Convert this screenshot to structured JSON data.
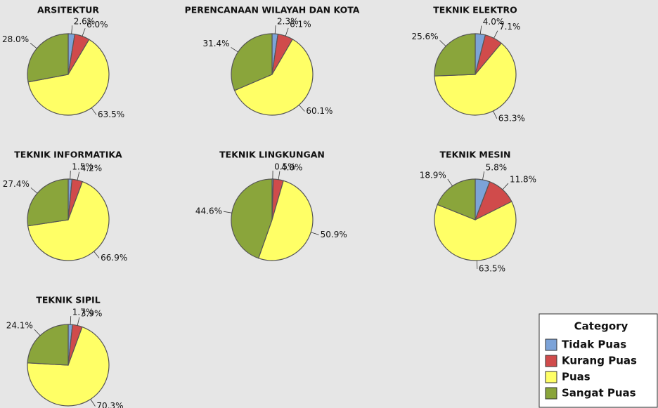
{
  "legend_title": "Category",
  "chart_data": [
    {
      "type": "pie",
      "title": "ARSITEKTUR",
      "categories": [
        "Tidak Puas",
        "Kurang Puas",
        "Puas",
        "Sangat Puas"
      ],
      "values": [
        2.6,
        6.0,
        63.5,
        28.0
      ],
      "value_labels": [
        "2.6%",
        "6.0%",
        "63.5%",
        "28.0%"
      ],
      "colors": [
        "#7ca3d8",
        "#d04b4b",
        "#ffff66",
        "#8aa53b"
      ]
    },
    {
      "type": "pie",
      "title": "PERENCANAAN WILAYAH DAN KOTA",
      "categories": [
        "Tidak Puas",
        "Kurang Puas",
        "Puas",
        "Sangat Puas"
      ],
      "values": [
        2.3,
        6.1,
        60.1,
        31.4
      ],
      "value_labels": [
        "2.3%",
        "6.1%",
        "60.1%",
        "31.4%"
      ],
      "colors": [
        "#7ca3d8",
        "#d04b4b",
        "#ffff66",
        "#8aa53b"
      ]
    },
    {
      "type": "pie",
      "title": "TEKNIK ELEKTRO",
      "categories": [
        "Tidak Puas",
        "Kurang Puas",
        "Puas",
        "Sangat Puas"
      ],
      "values": [
        4.0,
        7.1,
        63.3,
        25.6
      ],
      "value_labels": [
        "4.0%",
        "7.1%",
        "63.3%",
        "25.6%"
      ],
      "colors": [
        "#7ca3d8",
        "#d04b4b",
        "#ffff66",
        "#8aa53b"
      ]
    },
    {
      "type": "pie",
      "title": "TEKNIK INFORMATIKA",
      "categories": [
        "Tidak Puas",
        "Kurang Puas",
        "Puas",
        "Sangat Puas"
      ],
      "values": [
        1.5,
        4.2,
        66.9,
        27.4
      ],
      "value_labels": [
        "1.5%",
        "4.2%",
        "66.9%",
        "27.4%"
      ],
      "colors": [
        "#7ca3d8",
        "#d04b4b",
        "#ffff66",
        "#8aa53b"
      ]
    },
    {
      "type": "pie",
      "title": "TEKNIK LINGKUNGAN",
      "categories": [
        "Tidak Puas",
        "Kurang Puas",
        "Puas",
        "Sangat Puas"
      ],
      "values": [
        0.5,
        4.0,
        50.9,
        44.6
      ],
      "value_labels": [
        "0.5%",
        "4.0%",
        "50.9%",
        "44.6%"
      ],
      "colors": [
        "#7ca3d8",
        "#d04b4b",
        "#ffff66",
        "#8aa53b"
      ]
    },
    {
      "type": "pie",
      "title": "TEKNIK MESIN",
      "categories": [
        "Tidak Puas",
        "Kurang Puas",
        "Puas",
        "Sangat Puas"
      ],
      "values": [
        5.8,
        11.8,
        63.5,
        18.9
      ],
      "value_labels": [
        "5.8%",
        "11.8%",
        "63.5%",
        "18.9%"
      ],
      "colors": [
        "#7ca3d8",
        "#d04b4b",
        "#ffff66",
        "#8aa53b"
      ]
    },
    {
      "type": "pie",
      "title": "TEKNIK SIPIL",
      "categories": [
        "Tidak Puas",
        "Kurang Puas",
        "Puas",
        "Sangat Puas"
      ],
      "values": [
        1.7,
        3.9,
        70.3,
        24.1
      ],
      "value_labels": [
        "1.7%",
        "3.9%",
        "70.3%",
        "24.1%"
      ],
      "colors": [
        "#7ca3d8",
        "#d04b4b",
        "#ffff66",
        "#8aa53b"
      ]
    }
  ]
}
